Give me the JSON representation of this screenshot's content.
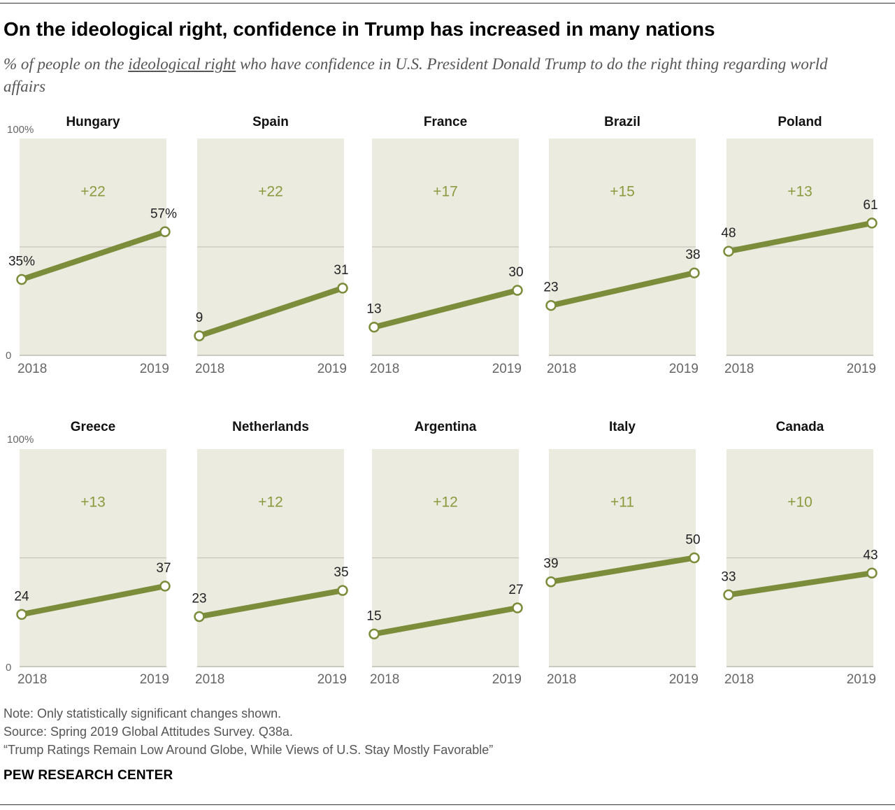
{
  "title": "On the ideological right, confidence in Trump has increased in many nations",
  "subtitle": {
    "before": "% of people on the ",
    "underlined": "ideological right",
    "after": " who have confidence in U.S. President Donald Trump to do the right thing regarding world affairs"
  },
  "chart_data": {
    "type": "line",
    "layout": "small-multiples",
    "x": [
      "2018",
      "2019"
    ],
    "ylim": [
      0,
      100
    ],
    "y_ticks": [
      "0",
      "100%"
    ],
    "gridline": 50,
    "grid": true,
    "panels": [
      {
        "country": "Hungary",
        "values": [
          35,
          57
        ],
        "labels": [
          "35%",
          "57%"
        ],
        "change": "+22"
      },
      {
        "country": "Spain",
        "values": [
          9,
          31
        ],
        "labels": [
          "9",
          "31"
        ],
        "change": "+22"
      },
      {
        "country": "France",
        "values": [
          13,
          30
        ],
        "labels": [
          "13",
          "30"
        ],
        "change": "+17"
      },
      {
        "country": "Brazil",
        "values": [
          23,
          38
        ],
        "labels": [
          "23",
          "38"
        ],
        "change": "+15"
      },
      {
        "country": "Poland",
        "values": [
          48,
          61
        ],
        "labels": [
          "48",
          "61"
        ],
        "change": "+13"
      },
      {
        "country": "Greece",
        "values": [
          24,
          37
        ],
        "labels": [
          "24",
          "37"
        ],
        "change": "+13"
      },
      {
        "country": "Netherlands",
        "values": [
          23,
          35
        ],
        "labels": [
          "23",
          "35"
        ],
        "change": "+12"
      },
      {
        "country": "Argentina",
        "values": [
          15,
          27
        ],
        "labels": [
          "15",
          "27"
        ],
        "change": "+12"
      },
      {
        "country": "Italy",
        "values": [
          39,
          50
        ],
        "labels": [
          "39",
          "50"
        ],
        "change": "+11"
      },
      {
        "country": "Canada",
        "values": [
          33,
          43
        ],
        "labels": [
          "33",
          "43"
        ],
        "change": "+10"
      }
    ]
  },
  "colors": {
    "line": "#7b8c3a",
    "panel": "#ecebe0",
    "change_text": "#8a9a3f",
    "gridline": "#c8c7bc"
  },
  "notes": {
    "note": "Note: Only statistically significant changes shown.",
    "source": "Source: Spring 2019 Global Attitudes Survey. Q38a.",
    "report": "“Trump Ratings Remain Low Around Globe, While Views of U.S. Stay Mostly Favorable”"
  },
  "brand": "PEW RESEARCH CENTER"
}
